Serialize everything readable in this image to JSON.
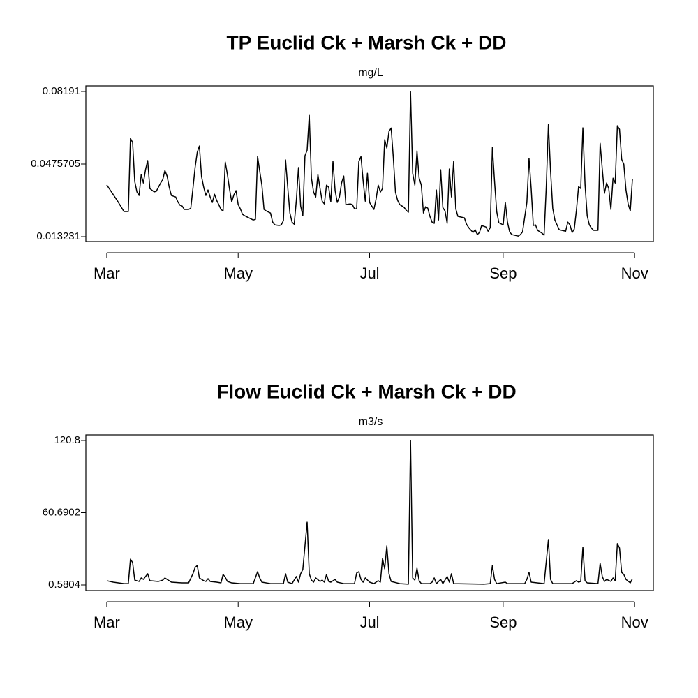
{
  "chart_data": [
    {
      "type": "line",
      "title": "TP Euclid Ck + Marsh Ck + DD",
      "subtitle": "mg/L",
      "color": "#000000",
      "x": [
        0,
        5,
        8,
        10,
        11,
        12,
        13,
        14,
        15,
        16,
        17,
        18,
        19,
        20,
        22,
        23,
        25,
        26,
        27,
        28,
        29,
        30,
        32,
        33,
        34,
        35,
        36,
        38,
        39,
        40,
        41,
        42,
        43,
        44,
        45,
        46,
        47,
        48,
        49,
        50,
        51,
        52,
        53,
        54,
        55,
        56,
        57,
        58,
        59,
        60,
        61,
        62,
        63,
        64,
        66,
        68,
        69,
        70,
        71,
        72,
        73,
        74,
        76,
        77,
        78,
        80,
        81,
        82,
        83,
        84,
        85,
        86,
        87,
        88,
        89,
        90,
        91,
        92,
        93,
        94,
        95,
        96,
        97,
        98,
        99,
        100,
        101,
        102,
        103,
        104,
        105,
        106,
        107,
        108,
        109,
        110,
        111,
        113,
        114,
        115,
        116,
        117,
        118,
        119,
        120,
        121,
        122,
        123,
        124,
        125,
        126,
        127,
        128,
        129,
        130,
        131,
        132,
        133,
        134,
        135,
        136,
        138,
        139,
        140,
        141,
        142,
        143,
        144,
        145,
        146,
        147,
        148,
        149,
        150,
        151,
        152,
        153,
        154,
        155,
        156,
        157,
        158,
        159,
        160,
        161,
        162,
        163,
        166,
        167,
        168,
        170,
        171,
        172,
        173,
        174,
        176,
        177,
        178,
        179,
        180,
        181,
        182,
        184,
        185,
        186,
        187,
        188,
        191,
        192,
        193,
        195,
        196,
        197,
        198,
        199,
        200,
        202,
        203,
        204,
        205,
        206,
        207,
        208,
        209,
        210,
        213,
        214,
        215,
        216,
        217,
        218,
        219,
        220,
        221,
        222,
        223,
        224,
        225,
        226,
        228,
        229,
        230,
        231,
        232,
        233,
        234,
        235,
        236,
        237,
        238,
        239,
        240,
        241,
        242,
        243,
        244
      ],
      "values": [
        0.0377,
        0.0301,
        0.0251,
        0.0251,
        0.0597,
        0.0578,
        0.0393,
        0.0344,
        0.0327,
        0.0426,
        0.0386,
        0.0449,
        0.0492,
        0.036,
        0.0344,
        0.0347,
        0.0386,
        0.0402,
        0.0445,
        0.0419,
        0.0366,
        0.0327,
        0.032,
        0.0297,
        0.0281,
        0.0277,
        0.0261,
        0.0261,
        0.0267,
        0.036,
        0.0459,
        0.0531,
        0.0561,
        0.0416,
        0.0366,
        0.0327,
        0.0353,
        0.032,
        0.0294,
        0.0333,
        0.0304,
        0.0284,
        0.0261,
        0.0254,
        0.0485,
        0.0426,
        0.0356,
        0.0297,
        0.033,
        0.035,
        0.0284,
        0.0264,
        0.0238,
        0.0231,
        0.0221,
        0.0211,
        0.0214,
        0.0512,
        0.0442,
        0.0376,
        0.0261,
        0.0254,
        0.0244,
        0.0201,
        0.0188,
        0.0185,
        0.0188,
        0.0208,
        0.0495,
        0.0366,
        0.0244,
        0.0201,
        0.0191,
        0.0304,
        0.0459,
        0.0277,
        0.0231,
        0.0515,
        0.0541,
        0.0706,
        0.0409,
        0.0343,
        0.032,
        0.0426,
        0.036,
        0.03,
        0.0287,
        0.0376,
        0.0366,
        0.0297,
        0.0488,
        0.035,
        0.0294,
        0.032,
        0.0386,
        0.0419,
        0.0284,
        0.0287,
        0.0284,
        0.0264,
        0.0264,
        0.0488,
        0.0511,
        0.0396,
        0.03,
        0.0432,
        0.0294,
        0.0277,
        0.0261,
        0.031,
        0.0376,
        0.0343,
        0.036,
        0.0591,
        0.0551,
        0.063,
        0.0646,
        0.0508,
        0.0343,
        0.0304,
        0.0284,
        0.0271,
        0.0257,
        0.0248,
        0.0818,
        0.0432,
        0.0376,
        0.0538,
        0.0409,
        0.0376,
        0.0244,
        0.0274,
        0.0267,
        0.0228,
        0.0201,
        0.0195,
        0.0353,
        0.0211,
        0.0449,
        0.027,
        0.0254,
        0.0195,
        0.0452,
        0.032,
        0.0488,
        0.0264,
        0.0228,
        0.0221,
        0.0191,
        0.0175,
        0.0152,
        0.0165,
        0.0142,
        0.0152,
        0.0185,
        0.0178,
        0.0158,
        0.0175,
        0.0554,
        0.0393,
        0.0251,
        0.0198,
        0.0188,
        0.0294,
        0.0201,
        0.0155,
        0.0142,
        0.0135,
        0.0142,
        0.0155,
        0.0294,
        0.0502,
        0.036,
        0.0185,
        0.0188,
        0.0162,
        0.0149,
        0.0139,
        0.0366,
        0.0663,
        0.0442,
        0.0267,
        0.0211,
        0.0188,
        0.0165,
        0.0158,
        0.0201,
        0.0188,
        0.0152,
        0.0168,
        0.0257,
        0.0369,
        0.036,
        0.0647,
        0.0379,
        0.0231,
        0.0188,
        0.0172,
        0.0162,
        0.0162,
        0.0574,
        0.0452,
        0.0337,
        0.0386,
        0.036,
        0.0261,
        0.0409,
        0.0386,
        0.0657,
        0.064,
        0.0498,
        0.0475,
        0.0353,
        0.0287,
        0.0254,
        0.0406
      ],
      "xlim": [
        -9.7,
        253.7
      ],
      "xticks": [
        {
          "value": 0,
          "label": "Mar"
        },
        {
          "value": 61,
          "label": "May"
        },
        {
          "value": 122,
          "label": "Jul"
        },
        {
          "value": 184,
          "label": "Sep"
        },
        {
          "value": 245,
          "label": "Nov"
        }
      ],
      "ylim": [
        0.01092,
        0.08455
      ],
      "yticks": [
        0.013231,
        0.0475705,
        0.08191
      ]
    },
    {
      "type": "line",
      "title": "Flow Euclid Ck + Marsh Ck + DD",
      "subtitle": "m3/s",
      "color": "#000000",
      "x": [
        0,
        3,
        8,
        10,
        11,
        12,
        13,
        15,
        16,
        17,
        18,
        19,
        20,
        24,
        26,
        27,
        28,
        30,
        35,
        38,
        40,
        41,
        42,
        43,
        45,
        46,
        47,
        48,
        51,
        53,
        54,
        55,
        56,
        58,
        62,
        68,
        70,
        71,
        72,
        76,
        82,
        83,
        84,
        86,
        88,
        89,
        90,
        91,
        93,
        94,
        95,
        96,
        97,
        99,
        100,
        101,
        102,
        103,
        104,
        106,
        107,
        110,
        115,
        116,
        117,
        118,
        119,
        120,
        122,
        124,
        126,
        127,
        128,
        129,
        130,
        131,
        132,
        136,
        140,
        141,
        142,
        143,
        144,
        145,
        146,
        150,
        151,
        152,
        153,
        155,
        156,
        158,
        159,
        160,
        161,
        175,
        178,
        179,
        180,
        181,
        185,
        186,
        194,
        195,
        196,
        197,
        203,
        205,
        206,
        207,
        216,
        218,
        219,
        220,
        221,
        222,
        223,
        228,
        229,
        230,
        231,
        232,
        234,
        235,
        236,
        237,
        238,
        239,
        240,
        241,
        243,
        244
      ],
      "values": [
        4.1,
        2.9,
        1.7,
        1.7,
        22,
        19.2,
        4.6,
        3.5,
        6.4,
        5.2,
        7.6,
        9.9,
        4.1,
        3.5,
        4.6,
        6.4,
        5.2,
        2.9,
        2.3,
        2.3,
        9.9,
        15.1,
        16.8,
        6.4,
        4.1,
        3.5,
        5.8,
        3.5,
        2.9,
        2.3,
        9.3,
        7,
        3.5,
        2.3,
        1.7,
        1.7,
        11.6,
        6.4,
        2.9,
        1.7,
        1.7,
        9.9,
        2.9,
        1.7,
        7.6,
        2.9,
        9.9,
        13.4,
        52.8,
        9.9,
        4.6,
        2.9,
        6.4,
        3.5,
        4.6,
        2.9,
        9.3,
        3.5,
        2.9,
        5.2,
        2.9,
        1.7,
        1.7,
        10.5,
        11.6,
        5.2,
        2.9,
        6.4,
        2.9,
        1.7,
        4.1,
        2.9,
        22.7,
        14,
        33.1,
        9.9,
        3.5,
        1.7,
        1.2,
        120.8,
        6.4,
        4.6,
        14.5,
        4.1,
        1.7,
        1.7,
        2.9,
        6.4,
        1.7,
        5.2,
        1.7,
        7.6,
        2.9,
        9.9,
        1.7,
        1.2,
        1.7,
        16.8,
        5.2,
        1.7,
        2.9,
        1.7,
        1.7,
        5.2,
        11,
        2.9,
        1.7,
        38.3,
        5.2,
        1.7,
        1.7,
        4.1,
        2.9,
        3.5,
        32,
        4.1,
        2.3,
        1.7,
        18.6,
        7.6,
        3.5,
        5.2,
        3.5,
        6.4,
        4.1,
        34.9,
        31.4,
        11,
        9.3,
        5.2,
        2.3,
        5.8
      ],
      "xlim": [
        -9.7,
        253.7
      ],
      "xticks": [
        {
          "value": 0,
          "label": "Mar"
        },
        {
          "value": 61,
          "label": "May"
        },
        {
          "value": 122,
          "label": "Jul"
        },
        {
          "value": 184,
          "label": "Sep"
        },
        {
          "value": 245,
          "label": "Nov"
        }
      ],
      "ylim": [
        -4.07,
        125.45
      ],
      "yticks": [
        0.5804,
        60.6902,
        120.8
      ]
    }
  ]
}
